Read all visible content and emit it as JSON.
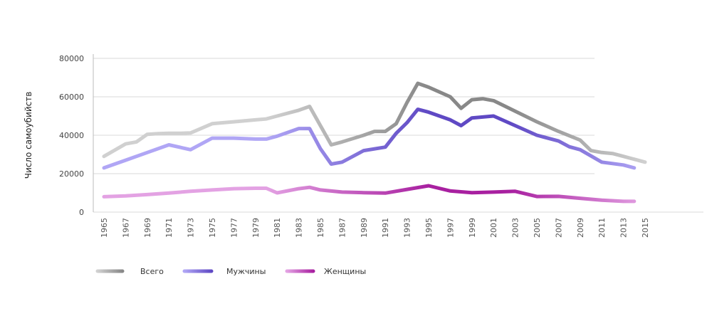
{
  "chart_data": {
    "type": "line",
    "ylabel": "Число самоубийств",
    "xlabel": "",
    "ylim": [
      0,
      80000
    ],
    "xlim": [
      1965,
      2015
    ],
    "grid": true,
    "legend_position": "bottom-left",
    "yticks": [
      "0",
      "20000",
      "40000",
      "60000",
      "80000"
    ],
    "xticks": [
      "1965",
      "1967",
      "1969",
      "1971",
      "1973",
      "1975",
      "1977",
      "1979",
      "1981",
      "1983",
      "1985",
      "1987",
      "1989",
      "1991",
      "1993",
      "1995",
      "1997",
      "1999",
      "2001",
      "2003",
      "2005",
      "2007",
      "2009",
      "2011",
      "2013",
      "2015"
    ],
    "series": [
      {
        "name": "Всего",
        "color_start": "#d0d0d0",
        "color_end": "#888888",
        "x": [
          1965,
          1967,
          1968,
          1969,
          1970,
          1971,
          1972,
          1973,
          1975,
          1977,
          1979,
          1980,
          1981,
          1983,
          1984,
          1985,
          1986,
          1987,
          1989,
          1990,
          1991,
          1992,
          1993,
          1994,
          1995,
          1997,
          1998,
          1999,
          2000,
          2001,
          2003,
          2005,
          2007,
          2009,
          2010,
          2011,
          2012,
          2013,
          2015
        ],
        "values": [
          29000,
          35500,
          36500,
          40500,
          40800,
          41000,
          41000,
          41200,
          46000,
          47000,
          48000,
          48500,
          50000,
          53000,
          55000,
          45000,
          35000,
          36500,
          40000,
          42000,
          42000,
          46000,
          57000,
          67000,
          65000,
          60000,
          54000,
          58500,
          59000,
          58000,
          52500,
          47000,
          42000,
          37500,
          32000,
          31000,
          30500,
          29000,
          26000
        ]
      },
      {
        "name": "Мужчины",
        "color_start": "#b0a6f5",
        "color_end": "#5f49c4",
        "x": [
          1965,
          1967,
          1969,
          1971,
          1973,
          1975,
          1977,
          1979,
          1980,
          1981,
          1983,
          1984,
          1985,
          1986,
          1987,
          1989,
          1991,
          1992,
          1993,
          1994,
          1995,
          1997,
          1998,
          1999,
          2001,
          2003,
          2005,
          2007,
          2008,
          2009,
          2011,
          2013,
          2014
        ],
        "values": [
          23000,
          27000,
          31000,
          35000,
          32500,
          38500,
          38500,
          38000,
          38000,
          39500,
          43500,
          43500,
          33000,
          25000,
          26000,
          32000,
          33800,
          41000,
          46500,
          53500,
          52000,
          48000,
          45000,
          49000,
          50000,
          45000,
          40000,
          37000,
          34000,
          32500,
          26000,
          24500,
          23000
        ]
      },
      {
        "name": "Женщины",
        "color_start": "#e3a2e3",
        "color_end": "#a820a0",
        "x": [
          1965,
          1967,
          1969,
          1971,
          1973,
          1975,
          1977,
          1979,
          1980,
          1981,
          1983,
          1984,
          1985,
          1987,
          1989,
          1991,
          1993,
          1995,
          1997,
          1999,
          2001,
          2003,
          2005,
          2007,
          2009,
          2011,
          2013,
          2014
        ],
        "values": [
          8000,
          8400,
          9100,
          9900,
          10800,
          11500,
          12200,
          12400,
          12400,
          10000,
          12200,
          12900,
          11500,
          10400,
          10100,
          9900,
          11800,
          13700,
          11000,
          10100,
          10400,
          10800,
          8100,
          8200,
          7200,
          6200,
          5600,
          5600
        ]
      }
    ]
  }
}
